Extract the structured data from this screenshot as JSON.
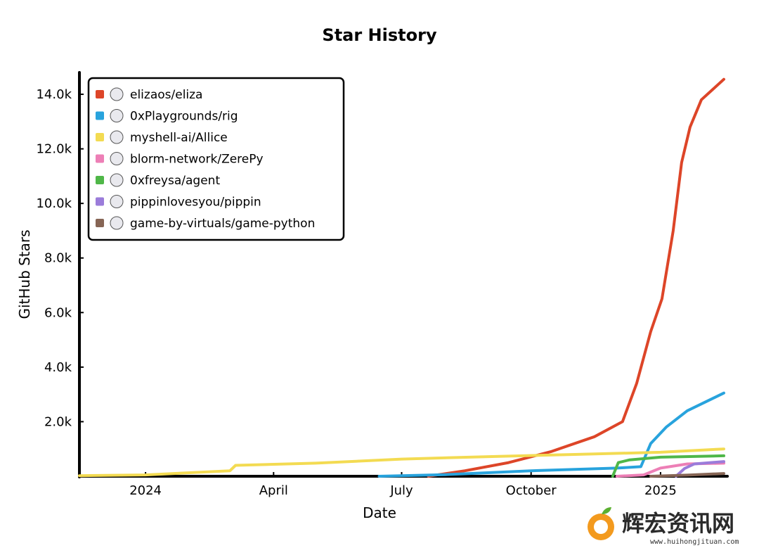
{
  "chart_data": {
    "type": "line",
    "title": "Star History",
    "xlabel": "Date",
    "ylabel": "GitHub Stars",
    "x_start": "2023-11-15",
    "x_end": "2025-02-15",
    "x_ticks": [
      {
        "label": "2024",
        "date": "2024-01-01"
      },
      {
        "label": "April",
        "date": "2024-04-01"
      },
      {
        "label": "July",
        "date": "2024-07-01"
      },
      {
        "label": "October",
        "date": "2024-10-01"
      },
      {
        "label": "2025",
        "date": "2025-01-01"
      }
    ],
    "y_ticks": [
      {
        "label": "2.0k",
        "value": 2000
      },
      {
        "label": "4.0k",
        "value": 4000
      },
      {
        "label": "6.0k",
        "value": 6000
      },
      {
        "label": "8.0k",
        "value": 8000
      },
      {
        "label": "10.0k",
        "value": 10000
      },
      {
        "label": "12.0k",
        "value": 12000
      },
      {
        "label": "14.0k",
        "value": 14000
      }
    ],
    "ylim": [
      0,
      14800
    ],
    "grid": false,
    "legend_position": "top-left",
    "series": [
      {
        "name": "elizaos/eliza",
        "color": "#dd4528",
        "icon": "eliza-avatar-icon",
        "points": [
          [
            "2024-07-20",
            0
          ],
          [
            "2024-08-15",
            200
          ],
          [
            "2024-09-15",
            500
          ],
          [
            "2024-10-15",
            900
          ],
          [
            "2024-11-15",
            1450
          ],
          [
            "2024-12-05",
            2000
          ],
          [
            "2024-12-15",
            3400
          ],
          [
            "2024-12-25",
            5300
          ],
          [
            "2025-01-02",
            6500
          ],
          [
            "2025-01-10",
            9000
          ],
          [
            "2025-01-16",
            11500
          ],
          [
            "2025-01-22",
            12800
          ],
          [
            "2025-01-30",
            13800
          ],
          [
            "2025-02-15",
            14550
          ]
        ]
      },
      {
        "name": "0xPlaygrounds/rig",
        "color": "#28a3dd",
        "icon": "rig-logo-icon",
        "points": [
          [
            "2024-06-15",
            0
          ],
          [
            "2024-08-01",
            60
          ],
          [
            "2024-10-01",
            200
          ],
          [
            "2024-12-01",
            300
          ],
          [
            "2024-12-18",
            350
          ],
          [
            "2024-12-25",
            1200
          ],
          [
            "2025-01-05",
            1800
          ],
          [
            "2025-01-20",
            2400
          ],
          [
            "2025-02-15",
            3050
          ]
        ]
      },
      {
        "name": "myshell-ai/Allice",
        "color": "#f3db52",
        "icon": "allice-logo-icon",
        "points": [
          [
            "2023-11-15",
            20
          ],
          [
            "2024-01-01",
            50
          ],
          [
            "2024-03-01",
            200
          ],
          [
            "2024-03-05",
            400
          ],
          [
            "2024-05-01",
            480
          ],
          [
            "2024-07-01",
            630
          ],
          [
            "2024-09-01",
            720
          ],
          [
            "2024-11-01",
            800
          ],
          [
            "2025-01-01",
            880
          ],
          [
            "2025-02-15",
            1000
          ]
        ]
      },
      {
        "name": "blorm-network/ZerePy",
        "color": "#ed7fb6",
        "icon": "zerepy-logo-icon",
        "points": [
          [
            "2024-12-01",
            0
          ],
          [
            "2024-12-20",
            50
          ],
          [
            "2025-01-01",
            300
          ],
          [
            "2025-01-20",
            450
          ],
          [
            "2025-02-15",
            480
          ]
        ]
      },
      {
        "name": "0xfreysa/agent",
        "color": "#4fb748",
        "icon": "freysa-avatar-icon",
        "points": [
          [
            "2024-11-28",
            0
          ],
          [
            "2024-12-02",
            500
          ],
          [
            "2024-12-10",
            600
          ],
          [
            "2025-01-01",
            700
          ],
          [
            "2025-02-15",
            750
          ]
        ]
      },
      {
        "name": "pippinlovesyou/pippin",
        "color": "#9b7cda",
        "icon": "pippin-logo-icon",
        "points": [
          [
            "2025-01-12",
            0
          ],
          [
            "2025-01-18",
            280
          ],
          [
            "2025-01-25",
            450
          ],
          [
            "2025-02-15",
            540
          ]
        ]
      },
      {
        "name": "game-by-virtuals/game-python",
        "color": "#866555",
        "icon": "game-python-logo-icon",
        "points": [
          [
            "2024-12-25",
            0
          ],
          [
            "2025-01-20",
            40
          ],
          [
            "2025-02-15",
            100
          ]
        ]
      }
    ]
  },
  "watermark": {
    "text": "辉宏资讯网",
    "url": "www.huihongjituan.com"
  }
}
